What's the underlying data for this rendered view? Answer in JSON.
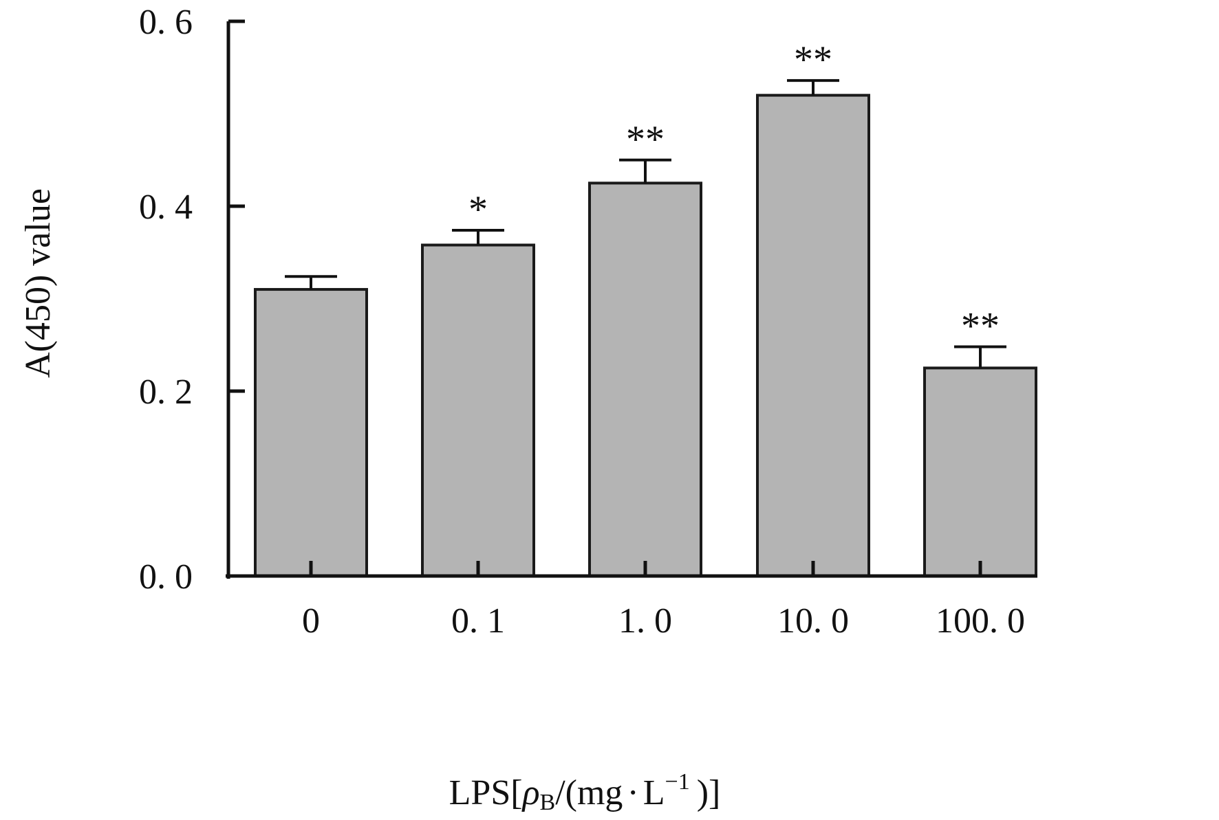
{
  "chart_data": {
    "type": "bar",
    "categories": [
      "0",
      "0.1",
      "1.0",
      "10.0",
      "100.0"
    ],
    "category_labels": [
      "0",
      "0. 1",
      "1. 0",
      "10. 0",
      "100. 0"
    ],
    "values": [
      0.31,
      0.358,
      0.425,
      0.52,
      0.225
    ],
    "error": [
      0.014,
      0.016,
      0.025,
      0.016,
      0.023
    ],
    "significance": [
      "",
      "*",
      "**",
      "**",
      "**"
    ],
    "ylim": [
      0,
      0.6
    ],
    "yticks": [
      0,
      0.2,
      0.4,
      0.6
    ],
    "ytick_labels": [
      "0. 0",
      "0. 2",
      "0. 4",
      "0. 6"
    ],
    "ylabel": "A(450) value",
    "xlabel": {
      "prefix": "LPS[",
      "rho": "ρ",
      "rho_sub": "B",
      "mid": "/(mg",
      "dot": "·",
      "unit": "L",
      "exp": "−1",
      "suffix": ")]"
    },
    "bar_color": "#b4b4b4",
    "edge_color": "#1a1a1a",
    "grid": false,
    "legend": "none"
  }
}
